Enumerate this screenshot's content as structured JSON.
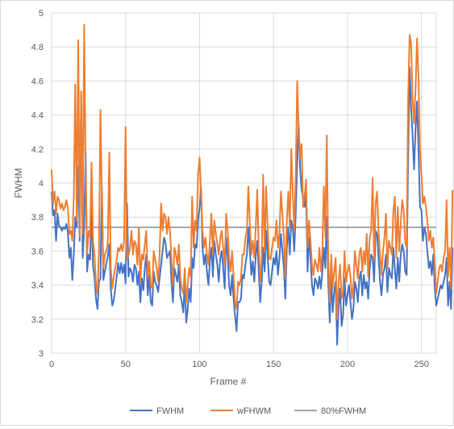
{
  "chart_data": {
    "type": "line",
    "title": "",
    "xlabel": "Frame #",
    "ylabel": "FWHM",
    "xlim": [
      0,
      260
    ],
    "ylim": [
      3,
      5
    ],
    "x_ticks": [
      0,
      50,
      100,
      150,
      200,
      250
    ],
    "y_ticks": [
      3,
      3.2,
      3.4,
      3.6,
      3.8,
      4,
      4.2,
      4.4,
      4.6,
      4.8,
      5
    ],
    "grid": "vertical and horizontal major gridlines",
    "legend_position": "bottom",
    "colors": {
      "FWHM": "#4472C4",
      "wFHWM": "#ED7D31",
      "80%FWHM": "#A5A5A5"
    },
    "x_step": 1,
    "series": [
      {
        "name": "FWHM",
        "values": [
          3.95,
          3.81,
          3.84,
          3.66,
          3.82,
          3.75,
          3.74,
          3.72,
          3.74,
          3.73,
          3.76,
          3.71,
          3.56,
          3.62,
          3.43,
          3.58,
          3.8,
          3.74,
          4.1,
          3.66,
          4.52,
          3.56,
          3.74,
          4.18,
          3.48,
          3.58,
          3.55,
          3.86,
          3.51,
          3.45,
          3.32,
          3.26,
          3.42,
          3.44,
          3.98,
          3.43,
          3.48,
          3.53,
          3.57,
          3.64,
          3.38,
          3.28,
          3.31,
          3.38,
          3.45,
          3.53,
          3.47,
          3.53,
          3.47,
          3.52,
          3.41,
          3.88,
          3.45,
          3.5,
          3.48,
          3.42,
          3.52,
          3.5,
          3.4,
          3.48,
          3.3,
          3.44,
          3.37,
          3.5,
          3.58,
          3.34,
          3.46,
          3.3,
          3.28,
          3.48,
          3.42,
          3.4,
          3.36,
          3.44,
          3.52,
          3.6,
          3.68,
          3.65,
          3.56,
          3.58,
          3.6,
          3.42,
          3.3,
          3.5,
          3.46,
          3.42,
          3.52,
          3.34,
          3.3,
          3.24,
          3.42,
          3.18,
          3.26,
          3.38,
          3.3,
          3.56,
          3.5,
          3.64,
          3.62,
          3.78,
          3.85,
          3.98,
          3.62,
          3.52,
          3.58,
          3.48,
          3.4,
          3.54,
          3.62,
          3.45,
          3.66,
          3.58,
          3.52,
          3.42,
          3.56,
          3.6,
          3.5,
          3.38,
          3.68,
          3.58,
          3.4,
          3.34,
          3.46,
          3.32,
          3.22,
          3.13,
          3.3,
          3.3,
          3.32,
          3.46,
          3.44,
          3.52,
          3.58,
          3.74,
          3.6,
          3.46,
          3.54,
          3.42,
          3.58,
          3.66,
          3.48,
          3.3,
          3.42,
          3.62,
          3.48,
          3.72,
          3.58,
          3.42,
          3.4,
          3.48,
          3.56,
          3.52,
          3.6,
          3.46,
          3.56,
          3.7,
          3.6,
          3.5,
          3.32,
          3.62,
          3.74,
          3.58,
          3.78,
          3.74,
          3.6,
          3.82,
          4.12,
          4.35,
          4.08,
          3.96,
          3.92,
          3.86,
          3.96,
          3.48,
          3.68,
          3.56,
          3.4,
          3.34,
          3.44,
          3.42,
          3.38,
          3.45,
          3.38,
          3.48,
          3.62,
          3.5,
          3.8,
          3.42,
          3.18,
          3.46,
          3.24,
          3.36,
          3.42,
          3.05,
          3.28,
          3.38,
          3.16,
          3.22,
          3.44,
          3.28,
          3.34,
          3.4,
          3.3,
          3.2,
          3.26,
          3.42,
          3.38,
          3.3,
          3.44,
          3.48,
          3.34,
          3.46,
          3.38,
          3.42,
          3.32,
          3.5,
          3.58,
          3.56,
          3.42,
          3.72,
          3.7,
          3.56,
          3.42,
          3.34,
          3.46,
          3.5,
          3.58,
          3.36,
          3.5,
          3.46,
          3.44,
          3.62,
          3.5,
          3.38,
          3.56,
          3.42,
          3.58,
          3.64,
          3.6,
          3.48,
          3.46,
          4.15,
          4.68,
          4.44,
          4.28,
          4.08,
          4.32,
          4.48,
          4.2,
          3.86,
          3.84,
          3.66,
          3.74,
          3.7,
          3.6,
          3.5,
          3.54,
          3.46,
          3.58,
          3.38,
          3.28,
          3.32,
          3.36,
          3.4,
          3.38,
          3.42,
          3.46,
          3.56,
          3.28,
          3.42,
          3.26,
          3.62
        ]
      },
      {
        "name": "wFHWM",
        "values": [
          4.08,
          3.88,
          3.95,
          3.82,
          3.92,
          3.9,
          3.85,
          3.88,
          3.84,
          3.86,
          3.9,
          3.85,
          3.7,
          3.72,
          3.66,
          3.92,
          4.58,
          3.78,
          4.84,
          3.68,
          4.54,
          3.7,
          4.93,
          4.05,
          3.58,
          3.72,
          3.68,
          4.12,
          3.66,
          3.58,
          3.4,
          3.35,
          3.6,
          4.43,
          3.9,
          3.5,
          3.58,
          3.6,
          3.65,
          4.18,
          3.5,
          3.38,
          3.45,
          3.5,
          3.55,
          3.62,
          3.6,
          3.64,
          3.6,
          3.66,
          4.33,
          3.55,
          3.58,
          3.62,
          3.72,
          3.58,
          3.66,
          3.64,
          3.52,
          3.74,
          3.42,
          3.58,
          3.55,
          3.64,
          3.72,
          3.45,
          3.54,
          3.4,
          3.38,
          3.6,
          3.55,
          3.5,
          3.42,
          3.58,
          3.88,
          3.72,
          3.82,
          3.8,
          3.7,
          3.8,
          3.72,
          3.55,
          3.4,
          3.62,
          3.58,
          3.52,
          3.64,
          3.45,
          3.38,
          3.35,
          3.5,
          3.3,
          3.4,
          3.5,
          3.45,
          3.92,
          3.62,
          3.78,
          3.72,
          4.05,
          4.15,
          3.95,
          3.72,
          3.62,
          3.68,
          3.58,
          3.52,
          3.66,
          3.82,
          3.58,
          3.78,
          3.7,
          3.64,
          3.58,
          3.68,
          3.72,
          3.62,
          3.52,
          3.82,
          3.72,
          3.56,
          3.48,
          3.6,
          3.45,
          3.3,
          3.26,
          3.42,
          3.4,
          3.44,
          3.58,
          3.58,
          3.68,
          3.72,
          3.98,
          3.76,
          3.58,
          3.66,
          3.56,
          3.74,
          3.96,
          3.62,
          3.42,
          3.56,
          4.05,
          3.6,
          3.98,
          3.75,
          3.56,
          3.55,
          3.62,
          3.68,
          3.66,
          3.78,
          3.62,
          3.7,
          3.95,
          3.82,
          3.68,
          3.44,
          3.78,
          3.95,
          3.74,
          4.2,
          3.95,
          3.72,
          4.05,
          4.6,
          4.3,
          4.15,
          4.23,
          3.86,
          3.92,
          4.02,
          3.62,
          3.78,
          3.66,
          3.52,
          3.46,
          3.55,
          3.52,
          3.48,
          3.62,
          3.48,
          3.6,
          3.98,
          3.68,
          4.28,
          3.56,
          3.3,
          3.58,
          3.38,
          3.48,
          3.56,
          3.2,
          3.42,
          3.52,
          3.32,
          3.36,
          3.6,
          3.42,
          3.48,
          3.52,
          3.45,
          3.32,
          3.4,
          3.6,
          3.52,
          3.44,
          3.58,
          3.62,
          3.48,
          3.6,
          3.52,
          3.7,
          3.45,
          3.68,
          3.72,
          4.03,
          3.55,
          3.88,
          3.95,
          3.72,
          3.58,
          3.46,
          3.6,
          3.68,
          3.82,
          3.5,
          3.66,
          3.62,
          3.58,
          3.84,
          3.92,
          3.56,
          3.86,
          3.6,
          3.76,
          3.9,
          3.84,
          3.65,
          3.62,
          4.5,
          4.87,
          4.82,
          4.5,
          4.35,
          4.55,
          4.85,
          4.62,
          4.2,
          4.05,
          3.88,
          3.92,
          3.86,
          3.78,
          3.66,
          3.72,
          3.62,
          3.68,
          3.52,
          3.35,
          3.42,
          3.5,
          3.52,
          3.48,
          3.56,
          3.6,
          3.9,
          3.45,
          3.62,
          3.38,
          3.96
        ]
      },
      {
        "name": "80%FWHM",
        "values": [
          3.74,
          3.74
        ]
      }
    ]
  }
}
